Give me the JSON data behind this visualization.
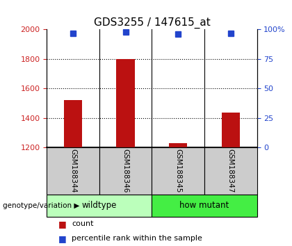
{
  "title": "GDS3255 / 147615_at",
  "samples": [
    "GSM188344",
    "GSM188346",
    "GSM188345",
    "GSM188347"
  ],
  "counts": [
    1520,
    1800,
    1230,
    1435
  ],
  "percentiles": [
    97,
    98,
    96,
    97
  ],
  "ylim_left": [
    1200,
    2000
  ],
  "ylim_right": [
    0,
    100
  ],
  "yticks_left": [
    1200,
    1400,
    1600,
    1800,
    2000
  ],
  "yticks_right": [
    0,
    25,
    50,
    75,
    100
  ],
  "bar_color": "#bb1111",
  "dot_color": "#2244cc",
  "bar_bottom": 1200,
  "groups": [
    {
      "label": "wildtype",
      "samples": [
        0,
        1
      ],
      "color": "#bbffbb"
    },
    {
      "label": "how mutant",
      "samples": [
        2,
        3
      ],
      "color": "#44ee44"
    }
  ],
  "group_label": "genotype/variation",
  "legend_count_label": "count",
  "legend_pct_label": "percentile rank within the sample",
  "title_fontsize": 11,
  "axis_label_color_left": "#cc2222",
  "axis_label_color_right": "#2244cc",
  "sample_box_color": "#cccccc",
  "grid_color": "#000000"
}
